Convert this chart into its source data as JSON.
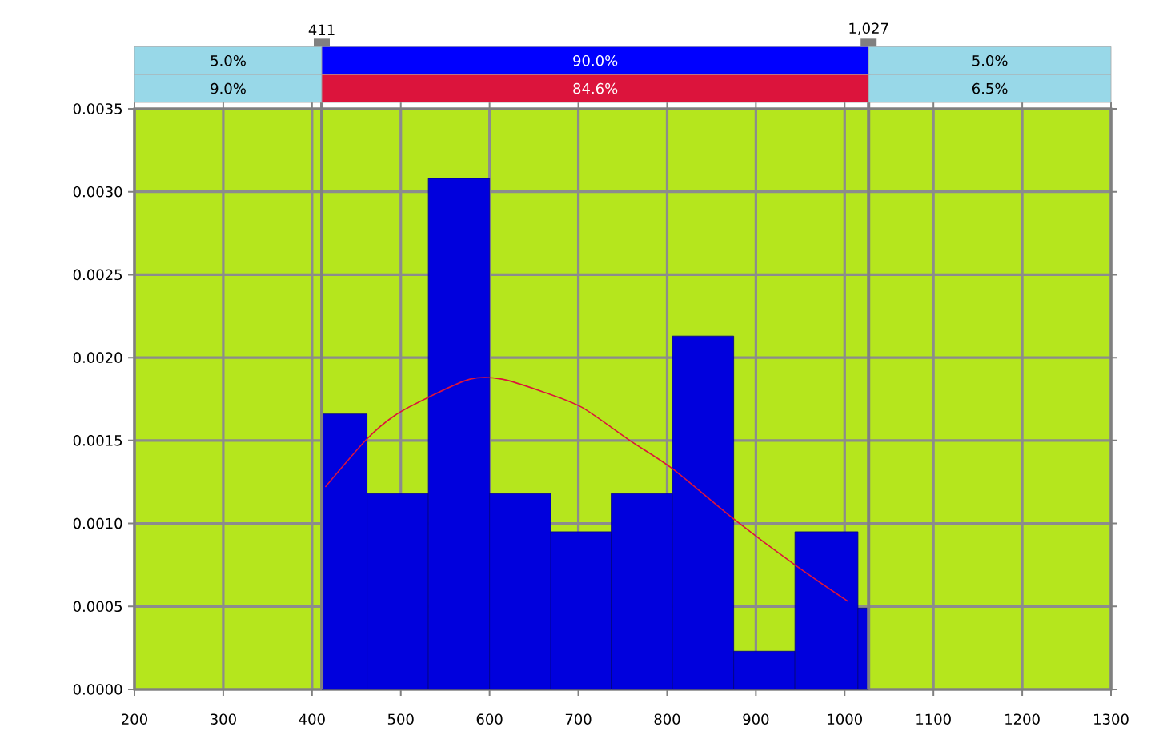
{
  "chart_data": {
    "type": "histogram",
    "bins": [
      411,
      462,
      531,
      600,
      669,
      737,
      806,
      875,
      944,
      1015,
      1027
    ],
    "values": [
      0.00166,
      0.00118,
      0.00308,
      0.00118,
      0.00095,
      0.00118,
      0.00213,
      0.00023,
      0.00095,
      0.00049
    ],
    "color": "#0000dd",
    "series": [
      {
        "type": "line",
        "color": "#dc143c",
        "x": [
          415,
          462,
          493,
          531,
          578,
          614,
          662,
          704,
          758,
          806,
          872,
          944,
          1004
        ],
        "values": [
          0.00122,
          0.00151,
          0.00165,
          0.00176,
          0.00187,
          0.00187,
          0.00179,
          0.0017,
          0.0015,
          0.00133,
          0.00104,
          0.00075,
          0.00053
        ]
      }
    ],
    "xlim": [
      200,
      1300
    ],
    "ylim": [
      0,
      0.0035
    ],
    "xticks": [
      200,
      300,
      400,
      500,
      600,
      700,
      800,
      900,
      1000,
      1100,
      1200,
      1300
    ],
    "yticks": [
      {
        "value": 0,
        "label": "0.0000"
      },
      {
        "value": 0.0005,
        "label": "0.0005"
      },
      {
        "value": 0.001,
        "label": "0.0010"
      },
      {
        "value": 0.0015,
        "label": "0.0015"
      },
      {
        "value": 0.002,
        "label": "0.0020"
      },
      {
        "value": 0.0025,
        "label": "0.0025"
      },
      {
        "value": 0.003,
        "label": "0.0030"
      },
      {
        "value": 0.0035,
        "label": "0.0035"
      }
    ],
    "grid": true,
    "ref_lines": [
      {
        "axis": "x",
        "value": 411,
        "label": "411",
        "color": "#808080"
      },
      {
        "axis": "x",
        "value": 1027,
        "label": "1,027",
        "color": "#808080"
      }
    ],
    "annotations": [
      "5.0%",
      "90.0%",
      "5.0%",
      "9.0%",
      "84.6%",
      "6.5%"
    ]
  }
}
